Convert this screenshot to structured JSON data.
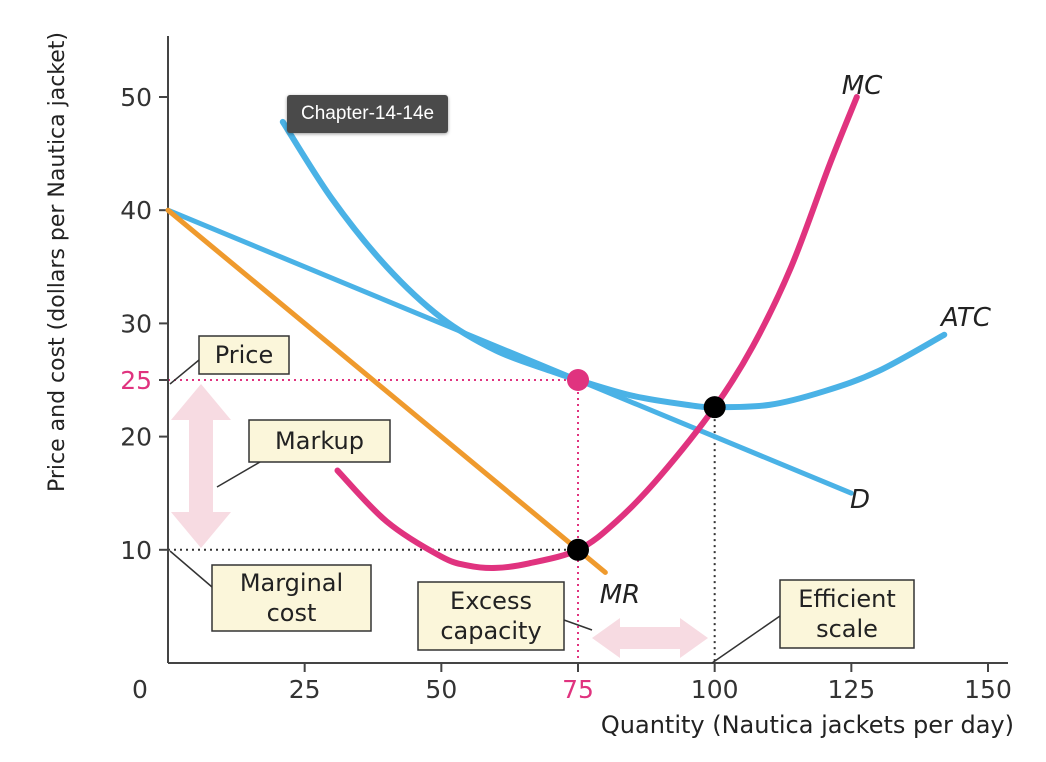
{
  "tooltip": "Chapter-14-14e",
  "colors": {
    "atc": "#4ab2e6",
    "demand": "#4ab2e6",
    "mc": "#e0337f",
    "mr": "#ef9a2d",
    "highlight": "#e0337f",
    "box_fill": "#fbf6da",
    "arrow": "#f7dbe2"
  },
  "chart_data": {
    "type": "line",
    "title": "",
    "xlabel": "Quantity (Nautica jackets per day)",
    "ylabel": "Price and cost (dollars per Nautica jacket)",
    "xlim": [
      0,
      150
    ],
    "ylim": [
      0,
      55
    ],
    "x_ticks": [
      {
        "value": 0,
        "label": "0"
      },
      {
        "value": 25,
        "label": "25"
      },
      {
        "value": 50,
        "label": "50"
      },
      {
        "value": 75,
        "label": "75",
        "highlight": true
      },
      {
        "value": 100,
        "label": "100"
      },
      {
        "value": 125,
        "label": "125"
      },
      {
        "value": 150,
        "label": "150"
      }
    ],
    "y_ticks": [
      {
        "value": 10,
        "label": "10"
      },
      {
        "value": 20,
        "label": "20"
      },
      {
        "value": 25,
        "label": "25",
        "highlight": true
      },
      {
        "value": 30,
        "label": "30"
      },
      {
        "value": 40,
        "label": "40"
      },
      {
        "value": 50,
        "label": "50"
      }
    ],
    "series": [
      {
        "name": "ATC",
        "points": [
          [
            21,
            47.8
          ],
          [
            30,
            41
          ],
          [
            40,
            35
          ],
          [
            50,
            30.5
          ],
          [
            60,
            27.6
          ],
          [
            70,
            25.8
          ],
          [
            75,
            25
          ],
          [
            85,
            23.6
          ],
          [
            95,
            22.8
          ],
          [
            100,
            22.6
          ],
          [
            110,
            22.8
          ],
          [
            120,
            24
          ],
          [
            130,
            25.8
          ],
          [
            142,
            29
          ]
        ]
      },
      {
        "name": "D",
        "points": [
          [
            0,
            40
          ],
          [
            125,
            15
          ]
        ]
      },
      {
        "name": "MC",
        "points": [
          [
            31,
            17
          ],
          [
            40,
            12.5
          ],
          [
            50,
            9.4
          ],
          [
            55,
            8.6
          ],
          [
            60,
            8.4
          ],
          [
            66,
            8.8
          ],
          [
            75,
            10
          ],
          [
            82,
            12.5
          ],
          [
            90,
            16.5
          ],
          [
            100,
            22.6
          ],
          [
            107,
            28
          ],
          [
            114,
            35
          ],
          [
            121,
            44
          ],
          [
            126,
            50
          ]
        ]
      },
      {
        "name": "MR",
        "points": [
          [
            0,
            40
          ],
          [
            80,
            8
          ]
        ]
      }
    ],
    "points_marked": [
      {
        "x": 75,
        "y": 25,
        "color": "highlight"
      },
      {
        "x": 75,
        "y": 10,
        "color": "black"
      },
      {
        "x": 100,
        "y": 22.6,
        "color": "black"
      }
    ],
    "curve_labels": [
      {
        "series": "MC",
        "text": "MC"
      },
      {
        "series": "ATC",
        "text": "ATC"
      },
      {
        "series": "D",
        "text": "D"
      },
      {
        "series": "MR",
        "text": "MR"
      }
    ],
    "annotations": [
      {
        "key": "price",
        "text": [
          "Price"
        ]
      },
      {
        "key": "markup",
        "text": [
          "Markup"
        ]
      },
      {
        "key": "marginal_cost",
        "text": [
          "Marginal",
          "cost"
        ]
      },
      {
        "key": "excess_capacity",
        "text": [
          "Excess",
          "capacity"
        ]
      },
      {
        "key": "efficient_scale",
        "text": [
          "Efficient",
          "scale"
        ]
      }
    ]
  }
}
